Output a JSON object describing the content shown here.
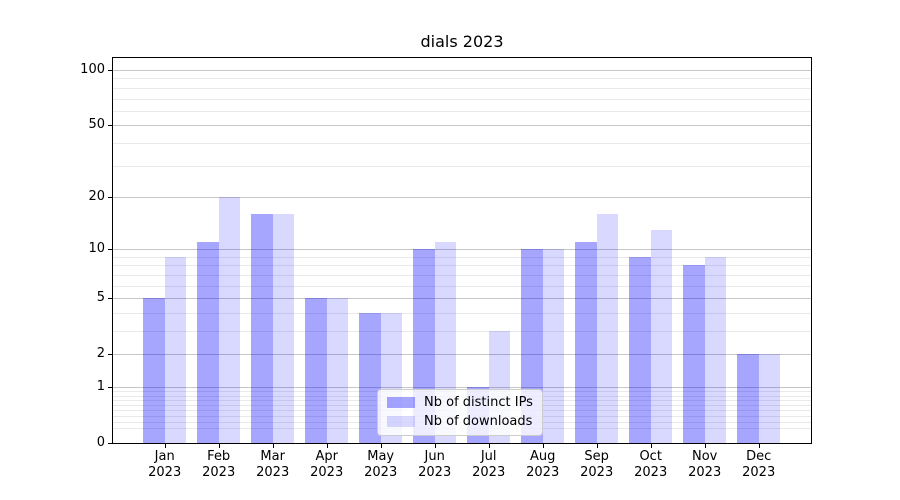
{
  "chart_data": {
    "type": "bar",
    "title": "dials 2023",
    "categories": [
      "Jan",
      "Feb",
      "Mar",
      "Apr",
      "May",
      "Jun",
      "Jul",
      "Aug",
      "Sep",
      "Oct",
      "Nov",
      "Dec"
    ],
    "x_tick_year": "2023",
    "series": [
      {
        "key": "ips",
        "name": "Nb of distinct IPs",
        "color": "rgba(0,0,255,0.35)",
        "values": [
          5,
          11,
          16,
          5,
          4,
          10,
          1,
          10,
          11,
          9,
          8,
          2
        ]
      },
      {
        "key": "downloads",
        "name": "Nb of downloads",
        "color": "rgba(0,0,255,0.15)",
        "values": [
          9,
          20,
          16,
          5,
          4,
          11,
          3,
          10,
          16,
          13,
          9,
          2
        ]
      }
    ],
    "y_axis": {
      "scale": "log1p",
      "ylim": [
        0,
        116
      ],
      "tick_values": [
        100,
        50,
        20,
        10,
        5,
        2,
        1,
        0
      ],
      "tick_labels": [
        "100",
        "50",
        "20",
        "10",
        "5",
        "2",
        "1",
        "0"
      ]
    },
    "grid": {
      "major_values": [
        1,
        2,
        5,
        10,
        20,
        50,
        100
      ],
      "minor_values": [
        0.2,
        0.3,
        0.4,
        0.5,
        0.6,
        0.7,
        0.8,
        0.9,
        3,
        4,
        6,
        7,
        8,
        9,
        30,
        40,
        60,
        70,
        80,
        90
      ],
      "major_color": "#c6c6c6",
      "minor_color": "#e9e9e9"
    },
    "legend": {
      "position": "lower center"
    },
    "colors": {
      "axis": "#000000",
      "text": "#000000",
      "background": "#ffffff"
    }
  }
}
